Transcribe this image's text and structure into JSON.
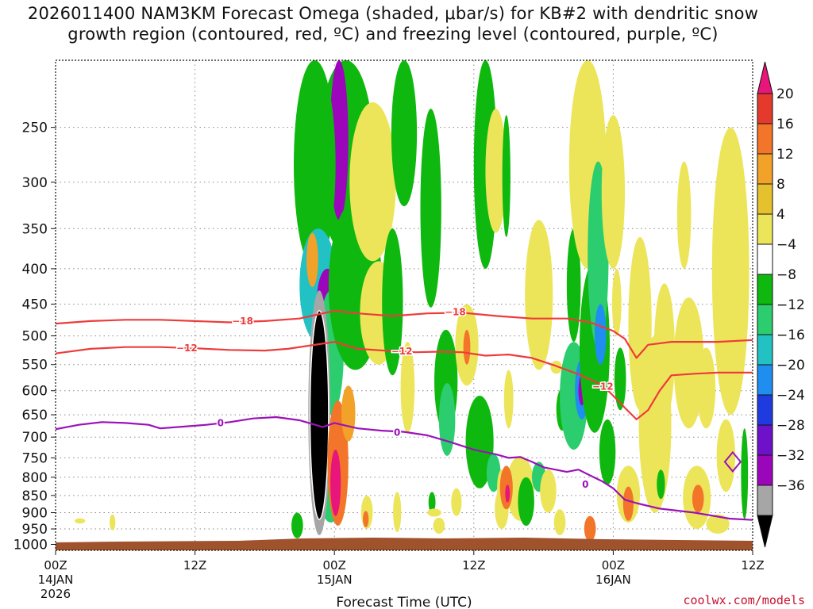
{
  "title_line1": "2026011400 NAM3KM Forecast Omega (shaded, μbar/s) for KB#2 with dendritic snow",
  "title_line2": "growth region (contoured, red, ºC) and freezing level (contoured, purple, ºC)",
  "credit": "coolwx.com/models",
  "chart_data": {
    "type": "heatmap",
    "xlabel": "Forecast Time (UTC)",
    "x_ticks": [
      {
        "h": 0,
        "label": "00Z",
        "sub1": "14JAN",
        "sub2": "2026"
      },
      {
        "h": 12,
        "label": "12Z",
        "sub1": "",
        "sub2": ""
      },
      {
        "h": 24,
        "label": "00Z",
        "sub1": "15JAN",
        "sub2": ""
      },
      {
        "h": 36,
        "label": "12Z",
        "sub1": "",
        "sub2": ""
      },
      {
        "h": 48,
        "label": "00Z",
        "sub1": "16JAN",
        "sub2": ""
      },
      {
        "h": 60,
        "label": "12Z",
        "sub1": "",
        "sub2": ""
      }
    ],
    "xlim": [
      0,
      60
    ],
    "y_scale": "log-pressure",
    "ylim": [
      1020,
      200
    ],
    "y_ticks": [
      250,
      300,
      350,
      400,
      450,
      500,
      550,
      600,
      650,
      700,
      750,
      800,
      850,
      900,
      950,
      1000
    ],
    "colorbar": {
      "labels": [
        "20",
        "16",
        "12",
        "8",
        "4",
        "−4",
        "−8",
        "−12",
        "−16",
        "−20",
        "−24",
        "−28",
        "−32",
        "−36"
      ],
      "colors": [
        "#e8157a",
        "#e33a2d",
        "#f37529",
        "#f2a129",
        "#e6c12e",
        "#ece55a",
        "#ffffff",
        "#0fb80f",
        "#2ccd6e",
        "#22c2c4",
        "#1f8ef0",
        "#1f3be0",
        "#6d12c9",
        "#9c06bb",
        "#a6a6a6",
        "#000000"
      ]
    },
    "contours": [
      {
        "label": "-18",
        "color": "#ee3b3b",
        "points": [
          [
            0,
            480
          ],
          [
            3,
            476
          ],
          [
            6,
            474
          ],
          [
            9,
            474
          ],
          [
            12,
            476
          ],
          [
            15,
            478
          ],
          [
            18,
            476
          ],
          [
            21,
            472
          ],
          [
            22,
            468
          ],
          [
            24,
            460
          ],
          [
            26,
            464
          ],
          [
            29,
            468
          ],
          [
            32,
            464
          ],
          [
            35,
            463
          ],
          [
            38,
            468
          ],
          [
            41,
            472
          ],
          [
            44,
            472
          ],
          [
            46,
            478
          ],
          [
            48,
            492
          ],
          [
            49,
            505
          ],
          [
            50,
            538
          ],
          [
            51,
            515
          ],
          [
            53,
            510
          ],
          [
            57,
            510
          ],
          [
            60,
            507
          ]
        ]
      },
      {
        "label": "-12",
        "color": "#ee3b3b",
        "points": [
          [
            0,
            530
          ],
          [
            3,
            522
          ],
          [
            6,
            519
          ],
          [
            9,
            519
          ],
          [
            12,
            521
          ],
          [
            15,
            524
          ],
          [
            18,
            525
          ],
          [
            20,
            522
          ],
          [
            22,
            516
          ],
          [
            24,
            510
          ],
          [
            26,
            522
          ],
          [
            29,
            526
          ],
          [
            31,
            528
          ],
          [
            33,
            527
          ],
          [
            35,
            528
          ],
          [
            37,
            534
          ],
          [
            39,
            532
          ],
          [
            41,
            538
          ],
          [
            43,
            552
          ],
          [
            45,
            568
          ],
          [
            47,
            588
          ],
          [
            48,
            610
          ],
          [
            49,
            635
          ],
          [
            50,
            660
          ],
          [
            51,
            640
          ],
          [
            52,
            600
          ],
          [
            53,
            570
          ],
          [
            55,
            567
          ],
          [
            57,
            565
          ],
          [
            60,
            565
          ]
        ]
      },
      {
        "label": "0",
        "color": "#9b12b8",
        "points": [
          [
            0,
            682
          ],
          [
            2,
            672
          ],
          [
            4,
            666
          ],
          [
            6,
            668
          ],
          [
            8,
            672
          ],
          [
            9,
            680
          ],
          [
            11,
            676
          ],
          [
            13,
            672
          ],
          [
            15,
            666
          ],
          [
            17,
            658
          ],
          [
            19,
            655
          ],
          [
            21,
            662
          ],
          [
            23,
            677
          ],
          [
            24,
            668
          ],
          [
            26,
            680
          ],
          [
            28,
            685
          ],
          [
            30,
            688
          ],
          [
            32,
            696
          ],
          [
            34,
            712
          ],
          [
            36,
            730
          ],
          [
            38,
            742
          ],
          [
            39,
            750
          ],
          [
            40,
            748
          ],
          [
            41,
            760
          ],
          [
            42,
            774
          ],
          [
            44,
            786
          ],
          [
            45,
            780
          ],
          [
            46,
            795
          ],
          [
            47,
            810
          ],
          [
            48,
            830
          ],
          [
            49,
            862
          ],
          [
            50,
            872
          ],
          [
            52,
            888
          ],
          [
            55,
            900
          ],
          [
            58,
            918
          ],
          [
            60,
            922
          ]
        ]
      }
    ],
    "contour_labels": [
      {
        "text": "−18",
        "x": 16.1,
        "p": 476,
        "color": "#ee3b3b"
      },
      {
        "text": "−18",
        "x": 34.4,
        "p": 462,
        "color": "#ee3b3b"
      },
      {
        "text": "−12",
        "x": 11.3,
        "p": 521,
        "color": "#ee3b3b"
      },
      {
        "text": "−12",
        "x": 29.8,
        "p": 526,
        "color": "#ee3b3b"
      },
      {
        "text": "−12",
        "x": 47.1,
        "p": 592,
        "color": "#ee3b3b"
      },
      {
        "text": "0",
        "x": 14.2,
        "p": 668,
        "color": "#9b12b8"
      },
      {
        "text": "0",
        "x": 29.4,
        "p": 690,
        "color": "#9b12b8"
      },
      {
        "text": "0",
        "x": 45.6,
        "p": 820,
        "color": "#9b12b8"
      }
    ],
    "omega_cells": [
      {
        "x": 25,
        "p": 280,
        "rx": 1.2,
        "rp": 80,
        "level": -20
      },
      {
        "x": 25,
        "p": 250,
        "rx": 2.4,
        "rp": 130,
        "level": -8
      },
      {
        "x": 24.4,
        "p": 270,
        "rx": 0.8,
        "rp": 70,
        "level": -28
      },
      {
        "x": 22.3,
        "p": 280,
        "rx": 1.8,
        "rp": 120,
        "level": -8
      },
      {
        "x": 22.6,
        "p": 430,
        "rx": 1.6,
        "rp": 80,
        "level": -16
      },
      {
        "x": 23.4,
        "p": 445,
        "rx": 0.9,
        "rp": 45,
        "level": -28
      },
      {
        "x": 22.1,
        "p": 390,
        "rx": 0.5,
        "rp": 35,
        "level": 8
      },
      {
        "x": 23.7,
        "p": 540,
        "rx": 1.1,
        "rp": 110,
        "level": -12
      },
      {
        "x": 23.7,
        "p": 800,
        "rx": 1.3,
        "rp": 130,
        "level": -12
      },
      {
        "x": 22.7,
        "p": 700,
        "rx": 0.95,
        "rp": 270,
        "level": -32
      },
      {
        "x": 22.7,
        "p": 690,
        "rx": 0.8,
        "rp": 230,
        "level": -36
      },
      {
        "x": 24.3,
        "p": 780,
        "rx": 0.9,
        "rp": 160,
        "level": 12
      },
      {
        "x": 24.1,
        "p": 820,
        "rx": 0.45,
        "rp": 90,
        "level": 20
      },
      {
        "x": 25.2,
        "p": 650,
        "rx": 0.6,
        "rp": 60,
        "level": 8
      },
      {
        "x": 20.8,
        "p": 940,
        "rx": 0.5,
        "rp": 40,
        "level": -8
      },
      {
        "x": 25.8,
        "p": 440,
        "rx": 2.3,
        "rp": 120,
        "level": -8
      },
      {
        "x": 27.3,
        "p": 310,
        "rx": 2.0,
        "rp": 80,
        "level": 4
      },
      {
        "x": 27.8,
        "p": 470,
        "rx": 1.6,
        "rp": 80,
        "level": 4
      },
      {
        "x": 29.0,
        "p": 460,
        "rx": 0.9,
        "rp": 110,
        "level": -8
      },
      {
        "x": 30.3,
        "p": 600,
        "rx": 0.6,
        "rp": 90,
        "level": 4
      },
      {
        "x": 30.0,
        "p": 255,
        "rx": 1.1,
        "rp": 70,
        "level": -8
      },
      {
        "x": 32.3,
        "p": 345,
        "rx": 0.9,
        "rp": 110,
        "level": -8
      },
      {
        "x": 33.6,
        "p": 590,
        "rx": 1.0,
        "rp": 100,
        "level": -8
      },
      {
        "x": 33.7,
        "p": 665,
        "rx": 0.7,
        "rp": 80,
        "level": -12
      },
      {
        "x": 35.4,
        "p": 520,
        "rx": 1.0,
        "rp": 70,
        "level": 4
      },
      {
        "x": 35.4,
        "p": 520,
        "rx": 0.3,
        "rp": 30,
        "level": 12
      },
      {
        "x": 34.5,
        "p": 870,
        "rx": 0.45,
        "rp": 40,
        "level": 4
      },
      {
        "x": 36.5,
        "p": 720,
        "rx": 1.2,
        "rp": 110,
        "level": -8
      },
      {
        "x": 37.0,
        "p": 290,
        "rx": 1.0,
        "rp": 110,
        "level": -8
      },
      {
        "x": 37.7,
        "p": 790,
        "rx": 0.6,
        "rp": 50,
        "level": -12
      },
      {
        "x": 37.9,
        "p": 295,
        "rx": 0.9,
        "rp": 60,
        "level": 4
      },
      {
        "x": 38.4,
        "p": 890,
        "rx": 0.6,
        "rp": 60,
        "level": 4
      },
      {
        "x": 39.0,
        "p": 620,
        "rx": 0.4,
        "rp": 60,
        "level": 4
      },
      {
        "x": 38.8,
        "p": 300,
        "rx": 0.35,
        "rp": 60,
        "level": -8
      },
      {
        "x": 40.0,
        "p": 835,
        "rx": 1.2,
        "rp": 90,
        "level": 4
      },
      {
        "x": 38.4,
        "p": 830,
        "rx": 0.4,
        "rp": 50,
        "level": 4
      },
      {
        "x": 38.8,
        "p": 830,
        "rx": 0.55,
        "rp": 60,
        "level": 12
      },
      {
        "x": 38.9,
        "p": 845,
        "rx": 0.2,
        "rp": 25,
        "level": 20
      },
      {
        "x": 40.5,
        "p": 870,
        "rx": 0.7,
        "rp": 70,
        "level": -8
      },
      {
        "x": 41.6,
        "p": 800,
        "rx": 0.6,
        "rp": 40,
        "level": -12
      },
      {
        "x": 41.6,
        "p": 450,
        "rx": 1.2,
        "rp": 110,
        "level": 4
      },
      {
        "x": 42.4,
        "p": 840,
        "rx": 0.7,
        "rp": 60,
        "level": 4
      },
      {
        "x": 43.6,
        "p": 640,
        "rx": 0.5,
        "rp": 45,
        "level": -8
      },
      {
        "x": 44.6,
        "p": 430,
        "rx": 0.6,
        "rp": 80,
        "level": -8
      },
      {
        "x": 44.6,
        "p": 620,
        "rx": 1.2,
        "rp": 110,
        "level": -12
      },
      {
        "x": 45.3,
        "p": 600,
        "rx": 0.6,
        "rp": 60,
        "level": -20
      },
      {
        "x": 45.3,
        "p": 600,
        "rx": 0.3,
        "rp": 30,
        "level": -28
      },
      {
        "x": 45.8,
        "p": 280,
        "rx": 1.6,
        "rp": 120,
        "level": 4
      },
      {
        "x": 46.4,
        "p": 540,
        "rx": 1.3,
        "rp": 150,
        "level": -8
      },
      {
        "x": 46.7,
        "p": 400,
        "rx": 0.9,
        "rp": 120,
        "level": -12
      },
      {
        "x": 46.9,
        "p": 500,
        "rx": 0.5,
        "rp": 50,
        "level": -20
      },
      {
        "x": 46.0,
        "p": 950,
        "rx": 0.5,
        "rp": 40,
        "level": 12
      },
      {
        "x": 47.5,
        "p": 740,
        "rx": 0.7,
        "rp": 80,
        "level": -8
      },
      {
        "x": 48.0,
        "p": 320,
        "rx": 1.0,
        "rp": 80,
        "level": 4
      },
      {
        "x": 48.6,
        "p": 580,
        "rx": 0.5,
        "rp": 60,
        "level": -8
      },
      {
        "x": 49.3,
        "p": 850,
        "rx": 1.0,
        "rp": 80,
        "level": 4
      },
      {
        "x": 49.3,
        "p": 875,
        "rx": 0.45,
        "rp": 50,
        "level": 12
      },
      {
        "x": 48.3,
        "p": 450,
        "rx": 0.4,
        "rp": 50,
        "level": 4
      },
      {
        "x": 50.3,
        "p": 500,
        "rx": 1.0,
        "rp": 140,
        "level": 4
      },
      {
        "x": 51.6,
        "p": 700,
        "rx": 1.4,
        "rp": 200,
        "level": 4
      },
      {
        "x": 52.4,
        "p": 540,
        "rx": 0.9,
        "rp": 120,
        "level": 4
      },
      {
        "x": 52.1,
        "p": 820,
        "rx": 0.35,
        "rp": 40,
        "level": -8
      },
      {
        "x": 54.1,
        "p": 340,
        "rx": 0.6,
        "rp": 60,
        "level": 4
      },
      {
        "x": 54.5,
        "p": 560,
        "rx": 1.3,
        "rp": 120,
        "level": 4
      },
      {
        "x": 55.2,
        "p": 860,
        "rx": 1.2,
        "rp": 90,
        "level": 4
      },
      {
        "x": 55.3,
        "p": 860,
        "rx": 0.5,
        "rp": 40,
        "level": 12
      },
      {
        "x": 56.0,
        "p": 600,
        "rx": 0.8,
        "rp": 80,
        "level": 4
      },
      {
        "x": 58.1,
        "p": 450,
        "rx": 1.6,
        "rp": 200,
        "level": 4
      },
      {
        "x": 58.4,
        "p": 330,
        "rx": 0.8,
        "rp": 60,
        "level": 4
      },
      {
        "x": 57.7,
        "p": 750,
        "rx": 0.8,
        "rp": 90,
        "level": 4
      },
      {
        "x": 59.3,
        "p": 800,
        "rx": 0.3,
        "rp": 120,
        "level": -8
      },
      {
        "x": 57.0,
        "p": 935,
        "rx": 1.0,
        "rp": 30,
        "level": 4
      },
      {
        "x": 2.1,
        "p": 925,
        "rx": 0.45,
        "rp": 8,
        "level": 4
      },
      {
        "x": 4.9,
        "p": 930,
        "rx": 0.25,
        "rp": 25,
        "level": 4
      },
      {
        "x": 32.4,
        "p": 870,
        "rx": 0.3,
        "rp": 30,
        "level": -8
      },
      {
        "x": 32.6,
        "p": 900,
        "rx": 0.6,
        "rp": 12,
        "level": 4
      },
      {
        "x": 29.4,
        "p": 900,
        "rx": 0.35,
        "rp": 60,
        "level": 4
      },
      {
        "x": 33.0,
        "p": 940,
        "rx": 0.5,
        "rp": 25,
        "level": 4
      },
      {
        "x": 43.1,
        "p": 555,
        "rx": 0.5,
        "rp": 12,
        "level": 4
      },
      {
        "x": 43.4,
        "p": 930,
        "rx": 0.5,
        "rp": 40,
        "level": 4
      },
      {
        "x": 26.8,
        "p": 900,
        "rx": 0.5,
        "rp": 50,
        "level": 4
      },
      {
        "x": 26.7,
        "p": 920,
        "rx": 0.25,
        "rp": 25,
        "level": 12
      }
    ]
  }
}
